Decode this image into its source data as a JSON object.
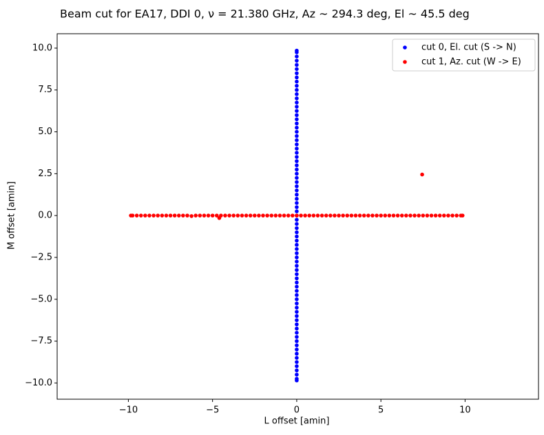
{
  "chart_data": {
    "type": "scatter",
    "title": "Beam cut for EA17, DDI 0, ν = 21.380 GHz, Az ~ 294.3 deg, El ~ 45.5 deg",
    "x_label": "L offset [amin]",
    "y_label": "M offset [amin]",
    "xlim": [
      -14.23,
      14.36
    ],
    "ylim": [
      -10.97,
      10.86
    ],
    "xticks": [
      {
        "value": -10,
        "label": "−10"
      },
      {
        "value": -5,
        "label": "−5"
      },
      0,
      5,
      10
    ],
    "yticks": [
      {
        "value": -10,
        "label": "−10.0"
      },
      {
        "value": -7.5,
        "label": "−7.5"
      },
      {
        "value": -5,
        "label": "−5.0"
      },
      {
        "value": -2.5,
        "label": "−2.5"
      },
      {
        "value": 0,
        "label": "0.0"
      },
      {
        "value": 2.5,
        "label": "2.5"
      },
      {
        "value": 5,
        "label": "5.0"
      },
      {
        "value": 7.5,
        "label": "7.5"
      },
      {
        "value": 10,
        "label": "10.0"
      }
    ],
    "legend": "upper right",
    "series": [
      {
        "name": "cut 0, El. cut (S -> N)",
        "color": "#0000ff",
        "x": [
          0,
          0,
          0,
          0,
          0,
          0,
          0,
          0,
          0,
          0,
          0,
          0,
          0,
          0,
          0,
          0,
          0,
          0,
          0,
          0,
          0,
          0,
          0,
          0,
          0,
          0,
          0,
          0,
          0,
          0,
          0,
          0,
          0,
          0,
          0,
          0,
          0,
          0,
          0,
          0,
          0,
          0,
          0,
          0,
          0,
          0,
          0,
          0,
          0,
          0,
          0,
          0,
          0,
          0,
          0,
          0,
          0,
          0,
          0,
          0,
          0,
          0,
          0,
          0,
          0,
          0,
          0,
          0,
          0,
          0,
          0,
          0,
          0,
          0,
          0,
          0,
          0,
          0,
          0,
          0,
          0
        ],
        "y": [
          -9.85,
          -9.75,
          -9.5,
          -9.25,
          -9,
          -8.75,
          -8.5,
          -8.25,
          -8,
          -7.75,
          -7.5,
          -7.25,
          -7,
          -6.75,
          -6.5,
          -6.25,
          -6,
          -5.75,
          -5.5,
          -5.25,
          -5,
          -4.75,
          -4.5,
          -4.25,
          -4,
          -3.75,
          -3.5,
          -3.25,
          -3,
          -2.75,
          -2.5,
          -2.25,
          -2,
          -1.75,
          -1.5,
          -1.25,
          -1,
          -0.75,
          -0.5,
          -0.25,
          0,
          0.25,
          0.5,
          0.75,
          1,
          1.25,
          1.5,
          1.75,
          2,
          2.25,
          2.5,
          2.75,
          3,
          3.25,
          3.5,
          3.75,
          4,
          4.25,
          4.5,
          4.75,
          5,
          5.25,
          5.5,
          5.75,
          6,
          6.25,
          6.5,
          6.75,
          7,
          7.25,
          7.5,
          7.75,
          8,
          8.25,
          8.5,
          8.75,
          9,
          9.25,
          9.5,
          9.75,
          9.85
        ]
      },
      {
        "name": "cut 1, Az. cut (W -> E)",
        "color": "#ff0000",
        "x": [
          -9.85,
          -9.75,
          -9.5,
          -9.25,
          -9,
          -8.75,
          -8.5,
          -8.25,
          -8,
          -7.75,
          -7.5,
          -7.25,
          -7,
          -6.75,
          -6.5,
          -6.25,
          -6,
          -5.75,
          -5.5,
          -5.25,
          -5,
          -4.75,
          -4.5,
          -4.25,
          -4,
          -3.75,
          -3.5,
          -3.25,
          -3,
          -2.75,
          -2.5,
          -2.25,
          -2,
          -1.75,
          -1.5,
          -1.25,
          -1,
          -0.75,
          -0.5,
          -0.25,
          0,
          0.25,
          0.5,
          0.75,
          1,
          1.25,
          1.5,
          1.75,
          2,
          2.25,
          2.5,
          2.75,
          3,
          3.25,
          3.5,
          3.75,
          4,
          4.25,
          4.5,
          4.75,
          5,
          5.25,
          5.5,
          5.75,
          6,
          6.25,
          6.5,
          6.75,
          7,
          7.25,
          7.5,
          7.75,
          8,
          8.25,
          8.5,
          8.75,
          9,
          9.25,
          9.5,
          9.75,
          9.85,
          7.45,
          -4.6
        ],
        "y": [
          0,
          0,
          0,
          0,
          0,
          0,
          0,
          0,
          0,
          0,
          0,
          0,
          0,
          0,
          0,
          -0.03,
          0,
          0,
          0,
          0,
          0,
          0,
          0,
          0,
          0,
          0,
          0,
          0,
          0,
          0,
          0,
          0,
          0,
          0,
          0,
          0,
          0,
          0,
          0,
          0,
          0,
          0,
          0,
          0,
          0,
          0,
          0,
          0,
          0,
          0,
          0,
          0,
          0,
          0,
          0,
          0,
          0,
          0,
          0,
          0,
          0,
          0,
          0,
          0,
          0,
          0,
          0,
          0,
          0,
          0,
          0,
          0,
          0,
          0,
          0,
          0,
          0,
          0,
          0,
          0,
          0,
          2.45,
          -0.15
        ]
      }
    ]
  }
}
